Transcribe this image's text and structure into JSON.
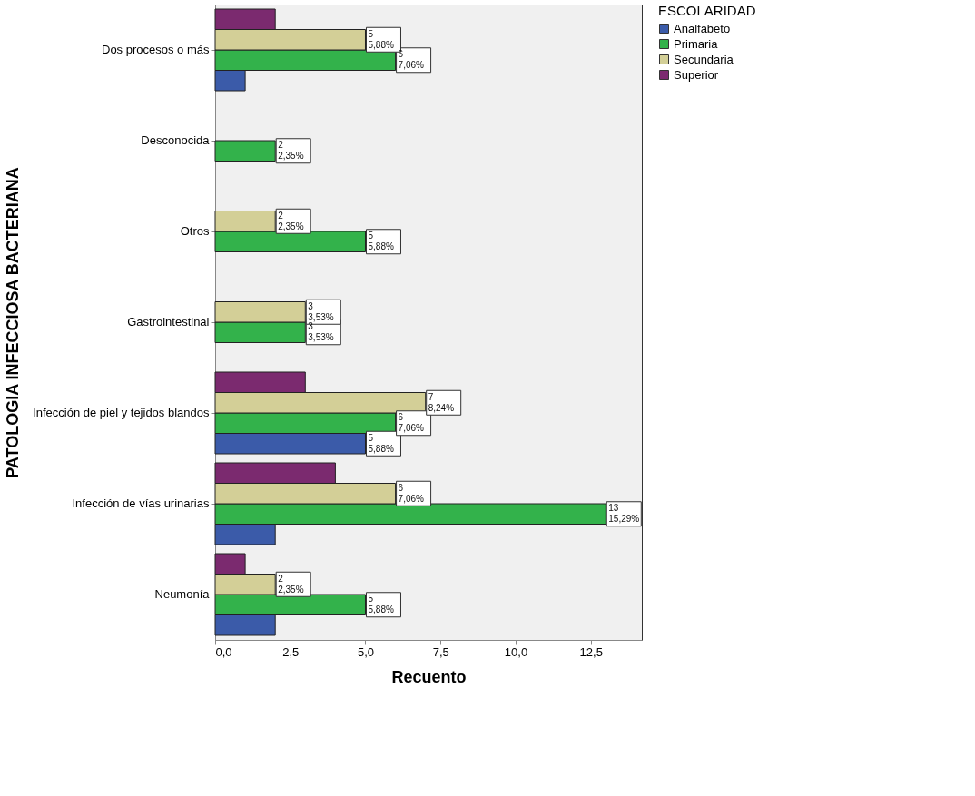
{
  "chart_data": {
    "type": "bar",
    "orientation": "horizontal",
    "xlabel": "Recuento",
    "ylabel": "PATOLOGIA INFECCIOSA BACTERIANA",
    "legend_title": "ESCOLARIDAD",
    "legend": "top right",
    "grid": false,
    "categories": [
      "Dos procesos o más",
      "Desconocida",
      "Otros",
      "Gastrointestinal",
      "Infección de piel y tejidos blandos",
      "Infección de vías urinarias",
      "Neumonía"
    ],
    "series": [
      {
        "name": "Analfabeto",
        "color": "#3b5ba9",
        "values": [
          1,
          null,
          null,
          null,
          5,
          2,
          2
        ],
        "value_labels": [
          null,
          null,
          null,
          null,
          "5\n5,88%",
          null,
          null
        ]
      },
      {
        "name": "Primaria",
        "color": "#33b24b",
        "values": [
          6,
          2,
          5,
          3,
          6,
          13,
          5
        ],
        "value_labels": [
          "6\n7,06%",
          "2\n2,35%",
          "5\n5,88%",
          "3\n3,53%",
          "6\n7,06%",
          "13\n15,29%",
          "5\n5,88%"
        ]
      },
      {
        "name": "Secundaria",
        "color": "#d3cf97",
        "values": [
          5,
          null,
          2,
          3,
          7,
          6,
          2
        ],
        "value_labels": [
          "5\n5,88%",
          null,
          "2\n2,35%",
          "3\n3,53%",
          "7\n8,24%",
          "6\n7,06%",
          "2\n2,35%"
        ]
      },
      {
        "name": "Superior",
        "color": "#7b2a6f",
        "values": [
          2,
          null,
          null,
          null,
          3,
          4,
          1
        ],
        "value_labels": [
          null,
          null,
          null,
          null,
          null,
          null,
          null
        ]
      }
    ],
    "xlim": [
      0,
      14.2
    ],
    "xticks": [
      {
        "value": 0,
        "label": "0,0"
      },
      {
        "value": 2.5,
        "label": "2,5"
      },
      {
        "value": 5,
        "label": "5,0"
      },
      {
        "value": 7.5,
        "label": "7,5"
      },
      {
        "value": 10,
        "label": "10,0"
      },
      {
        "value": 12.5,
        "label": "12,5"
      }
    ]
  }
}
